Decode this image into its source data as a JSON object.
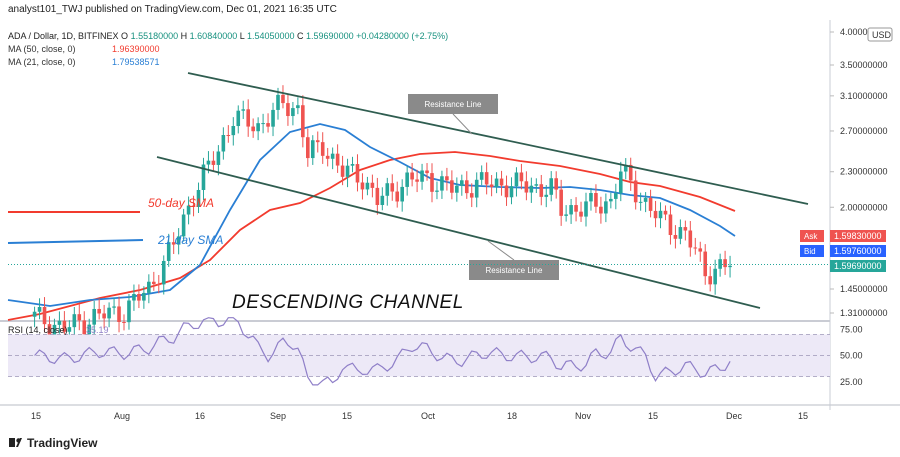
{
  "header": {
    "published": "analyst101_TWJ published on TradingView.com, Dec 01, 2021 16:35 UTC",
    "symbol": "ADA / Dollar, 1D, BITFINEX",
    "ohlc": {
      "o_label": "O",
      "o": "1.55180000",
      "h_label": "H",
      "h": "1.60840000",
      "l_label": "L",
      "l": "1.54050000",
      "c_label": "C",
      "c": "1.59690000",
      "change": "+0.04280000 (+2.75%)"
    },
    "ma50": {
      "label": "MA (50, close, 0)",
      "value": "1.96390000"
    },
    "ma21": {
      "label": "MA (21, close, 0)",
      "value": "1.79538571"
    }
  },
  "currency": "USD",
  "price_tags": {
    "ask_label": "Ask",
    "ask": "1.59830000",
    "bid_label": "Bid",
    "bid": "1.59760000",
    "last": "1.59690000"
  },
  "annotations": {
    "resistance_upper": "Resistance Line",
    "resistance_lower": "Resistance Line",
    "channel": "DESCENDING CHANNEL",
    "sma50": "50-day SMA",
    "sma21": "21 day SMA"
  },
  "rsi": {
    "label": "RSI (14, close)",
    "value": "35.19",
    "levels": [
      "75.00",
      "50.00",
      "25.00"
    ]
  },
  "footer": {
    "brand": "TradingView"
  },
  "colors": {
    "up": "#26a69a",
    "down": "#ef5350",
    "ma50": "#f23b2e",
    "ma21": "#2a7fd4",
    "rsi": "#8f7fc8",
    "channel": "#2f5d50"
  },
  "chart_data": {
    "type": "candlestick",
    "y_scale": "log",
    "y_ticks": [
      "4.00000000",
      "3.50000000",
      "3.10000000",
      "2.70000000",
      "2.30000000",
      "2.00000000",
      "1.45000000",
      "1.31000000"
    ],
    "x_ticks": [
      "15",
      "Aug",
      "16",
      "Sep",
      "15",
      "Oct",
      "18",
      "Nov",
      "15",
      "Dec",
      "15"
    ],
    "ohlc_sample": [
      [
        "2021-07-26",
        1.32,
        1.33,
        1.28,
        1.29
      ],
      [
        "2021-08-06",
        1.4,
        1.55,
        1.38,
        1.52
      ],
      [
        "2021-08-13",
        1.85,
        2.05,
        1.8,
        1.98
      ],
      [
        "2021-08-22",
        2.65,
        2.95,
        2.55,
        2.9
      ],
      [
        "2021-09-02",
        2.98,
        3.09,
        2.88,
        2.95
      ],
      [
        "2021-09-09",
        2.4,
        2.6,
        2.3,
        2.55
      ],
      [
        "2021-09-21",
        2.08,
        2.2,
        1.98,
        2.05
      ],
      [
        "2021-10-01",
        2.22,
        2.3,
        2.15,
        2.27
      ],
      [
        "2021-10-20",
        2.18,
        2.24,
        2.1,
        2.16
      ],
      [
        "2021-10-28",
        1.98,
        2.05,
        1.9,
        2.02
      ],
      [
        "2021-11-09",
        2.15,
        2.38,
        2.12,
        2.32
      ],
      [
        "2021-11-20",
        1.92,
        1.98,
        1.8,
        1.85
      ],
      [
        "2021-11-28",
        1.56,
        1.62,
        1.5,
        1.6
      ],
      [
        "2021-12-01",
        1.5518,
        1.6084,
        1.5405,
        1.5969
      ]
    ]
  }
}
